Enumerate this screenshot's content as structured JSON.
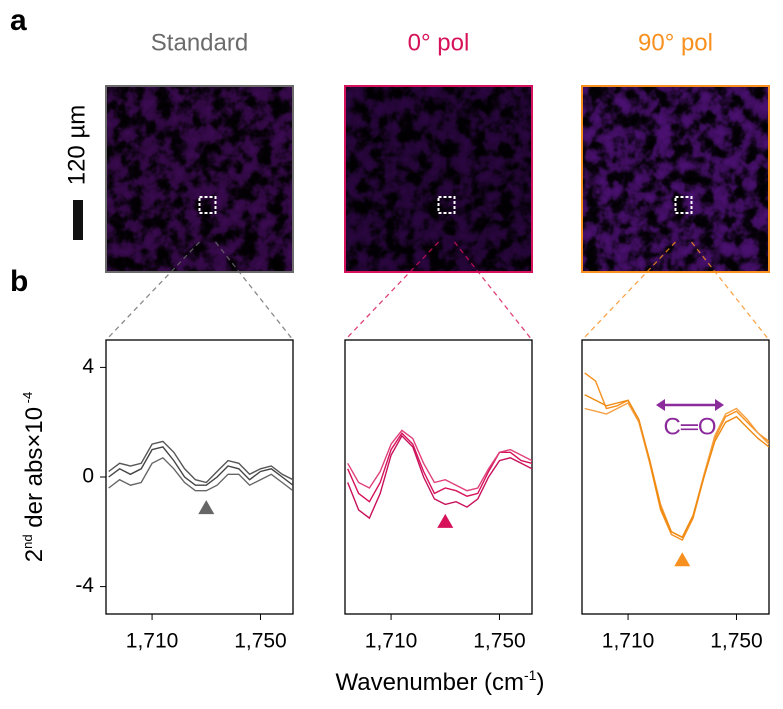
{
  "panel_labels": [
    "a",
    "b"
  ],
  "scale_bar_label": "120 µm",
  "y_label_parts": [
    "2",
    "nd",
    " der abs×10",
    " -4"
  ],
  "x_label_parts": [
    "Wavenumber (cm",
    "-1",
    ")"
  ],
  "chart_data": [
    {
      "type": "line",
      "title": "Standard",
      "title_color": "#6b6b6b",
      "image_tint": "#3a0a50",
      "border_color": "#6b6b6b",
      "x": [
        1694,
        1698,
        1702,
        1706,
        1710,
        1714,
        1718,
        1722,
        1726,
        1730,
        1734,
        1738,
        1742,
        1746,
        1750,
        1754,
        1758,
        1762
      ],
      "series": [
        {
          "color": "#444444",
          "values": [
            0.0,
            0.3,
            0.1,
            0.3,
            1.0,
            1.1,
            0.6,
            0.0,
            -0.3,
            -0.3,
            0.0,
            0.4,
            0.3,
            -0.1,
            0.2,
            0.3,
            0.0,
            -0.3
          ]
        },
        {
          "color": "#666666",
          "values": [
            -0.4,
            -0.1,
            -0.3,
            -0.2,
            0.5,
            0.7,
            0.3,
            -0.2,
            -0.5,
            -0.5,
            -0.3,
            0.1,
            0.1,
            -0.3,
            -0.1,
            0.1,
            -0.2,
            -0.5
          ]
        },
        {
          "color": "#555555",
          "values": [
            0.2,
            0.5,
            0.4,
            0.5,
            1.2,
            1.3,
            0.9,
            0.3,
            -0.1,
            -0.2,
            0.2,
            0.6,
            0.5,
            0.1,
            0.3,
            0.4,
            0.1,
            -0.1
          ]
        }
      ],
      "marker": {
        "x": 1730,
        "y": -1.1,
        "color": "#666666"
      },
      "xlim": [
        1693,
        1762
      ],
      "ylim": [
        -5,
        5
      ],
      "xticks": [
        {
          "value": 1710,
          "label": "1,710"
        },
        {
          "value": 1750,
          "label": "1,750"
        }
      ],
      "yticks": [
        4,
        0,
        -4
      ],
      "show_yticks": true
    },
    {
      "type": "line",
      "title": "0° pol",
      "title_color": "#d6125a",
      "image_tint": "#2a0640",
      "border_color": "#d6125a",
      "x": [
        1694,
        1698,
        1702,
        1706,
        1710,
        1714,
        1718,
        1722,
        1726,
        1730,
        1734,
        1738,
        1742,
        1746,
        1750,
        1754,
        1758,
        1762
      ],
      "series": [
        {
          "color": "#d6125a",
          "values": [
            0.3,
            -0.6,
            -0.9,
            -0.2,
            1.0,
            1.6,
            1.2,
            0.2,
            -0.6,
            -0.4,
            -0.5,
            -0.7,
            -0.6,
            0.2,
            0.9,
            0.9,
            0.6,
            0.5
          ]
        },
        {
          "color": "#c8105a",
          "values": [
            -0.2,
            -1.2,
            -1.5,
            -0.6,
            0.8,
            1.5,
            1.1,
            0.0,
            -0.8,
            -1.0,
            -0.9,
            -1.1,
            -0.8,
            0.0,
            0.6,
            0.7,
            0.5,
            0.3
          ]
        },
        {
          "color": "#e0407a",
          "values": [
            0.5,
            -0.2,
            -0.4,
            0.2,
            1.2,
            1.7,
            1.4,
            0.5,
            -0.2,
            -0.1,
            -0.3,
            -0.5,
            -0.4,
            0.3,
            0.9,
            1.0,
            0.8,
            0.6
          ]
        }
      ],
      "marker": {
        "x": 1730,
        "y": -1.6,
        "color": "#d6125a"
      },
      "xlim": [
        1693,
        1762
      ],
      "ylim": [
        -5,
        5
      ],
      "xticks": [
        {
          "value": 1710,
          "label": "1,710"
        },
        {
          "value": 1750,
          "label": "1,750"
        }
      ],
      "yticks": [
        4,
        0,
        -4
      ],
      "show_yticks": false
    },
    {
      "type": "line",
      "title": "90° pol",
      "title_color": "#f7901e",
      "image_tint": "#4a1070",
      "border_color": "#f7901e",
      "x": [
        1694,
        1698,
        1702,
        1706,
        1710,
        1714,
        1718,
        1722,
        1726,
        1730,
        1734,
        1738,
        1742,
        1746,
        1750,
        1754,
        1758,
        1762
      ],
      "series": [
        {
          "color": "#f7901e",
          "values": [
            3.8,
            3.5,
            2.5,
            2.6,
            2.8,
            2.0,
            0.5,
            -1.2,
            -2.1,
            -2.3,
            -1.5,
            0.0,
            1.4,
            2.2,
            2.4,
            2.0,
            1.6,
            1.3
          ]
        },
        {
          "color": "#f5a040",
          "values": [
            2.5,
            2.4,
            2.3,
            2.5,
            2.7,
            2.0,
            0.6,
            -1.0,
            -2.0,
            -2.2,
            -1.4,
            0.1,
            1.5,
            2.3,
            2.5,
            2.1,
            1.6,
            1.2
          ]
        },
        {
          "color": "#ee8a10",
          "values": [
            3.0,
            2.8,
            2.6,
            2.7,
            2.8,
            2.1,
            0.6,
            -1.1,
            -2.0,
            -2.2,
            -1.4,
            0.0,
            1.3,
            2.0,
            2.2,
            1.8,
            1.4,
            1.1
          ]
        }
      ],
      "marker": {
        "x": 1730,
        "y": -3.0,
        "color": "#f7901e"
      },
      "annotation": {
        "text": "C═O",
        "color": "#8b2a9b"
      },
      "xlim": [
        1693,
        1762
      ],
      "ylim": [
        -5,
        5
      ],
      "xticks": [
        {
          "value": 1710,
          "label": "1,710"
        },
        {
          "value": 1750,
          "label": "1,750"
        }
      ],
      "yticks": [
        4,
        0,
        -4
      ],
      "show_yticks": false
    }
  ]
}
